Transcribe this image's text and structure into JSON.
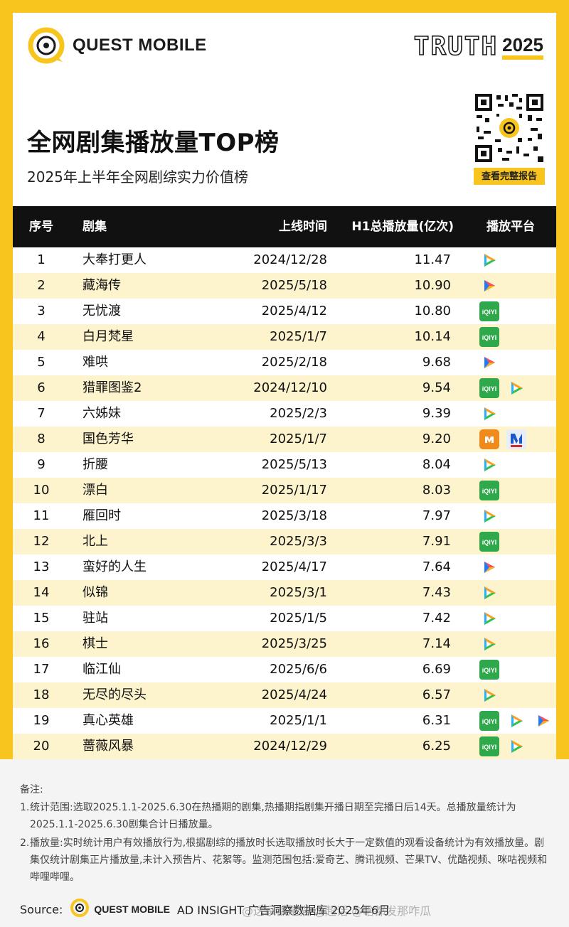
{
  "brand": {
    "name": "QUEST MOBILE",
    "truth_word": "TRUTH",
    "truth_year": "2025"
  },
  "title": "全网剧集播放量TOP榜",
  "subtitle": "2025年上半年全网剧综实力价值榜",
  "qr_button": "查看完整报告",
  "table": {
    "headers": {
      "no": "序号",
      "name": "剧集",
      "date": "上线时间",
      "value": "H1总播放量(亿次)",
      "platform": "播放平台"
    },
    "rows": [
      {
        "no": "1",
        "name": "大奉打更人",
        "date": "2024/12/28",
        "value": "11.47",
        "platforms": [
          "tencent"
        ]
      },
      {
        "no": "2",
        "name": "藏海传",
        "date": "2025/5/18",
        "value": "10.90",
        "platforms": [
          "youku"
        ]
      },
      {
        "no": "3",
        "name": "无忧渡",
        "date": "2025/4/12",
        "value": "10.80",
        "platforms": [
          "iqiyi"
        ]
      },
      {
        "no": "4",
        "name": "白月梵星",
        "date": "2025/1/7",
        "value": "10.14",
        "platforms": [
          "iqiyi"
        ]
      },
      {
        "no": "5",
        "name": "难哄",
        "date": "2025/2/18",
        "value": "9.68",
        "platforms": [
          "youku"
        ]
      },
      {
        "no": "6",
        "name": "猎罪图鉴2",
        "date": "2024/12/10",
        "value": "9.54",
        "platforms": [
          "iqiyi",
          "tencent"
        ]
      },
      {
        "no": "7",
        "name": "六姊妹",
        "date": "2025/2/3",
        "value": "9.39",
        "platforms": [
          "tencent"
        ]
      },
      {
        "no": "8",
        "name": "国色芳华",
        "date": "2025/1/7",
        "value": "9.20",
        "platforms": [
          "mango",
          "cctv"
        ]
      },
      {
        "no": "9",
        "name": "折腰",
        "date": "2025/5/13",
        "value": "8.04",
        "platforms": [
          "tencent"
        ]
      },
      {
        "no": "10",
        "name": "漂白",
        "date": "2025/1/17",
        "value": "8.03",
        "platforms": [
          "iqiyi"
        ]
      },
      {
        "no": "11",
        "name": "雁回时",
        "date": "2025/3/18",
        "value": "7.97",
        "platforms": [
          "tencent"
        ]
      },
      {
        "no": "12",
        "name": "北上",
        "date": "2025/3/3",
        "value": "7.91",
        "platforms": [
          "iqiyi"
        ]
      },
      {
        "no": "13",
        "name": "蛮好的人生",
        "date": "2025/4/17",
        "value": "7.64",
        "platforms": [
          "youku"
        ]
      },
      {
        "no": "14",
        "name": "似锦",
        "date": "2025/3/1",
        "value": "7.43",
        "platforms": [
          "tencent"
        ]
      },
      {
        "no": "15",
        "name": "驻站",
        "date": "2025/1/5",
        "value": "7.42",
        "platforms": [
          "tencent"
        ]
      },
      {
        "no": "16",
        "name": "棋士",
        "date": "2025/3/25",
        "value": "7.14",
        "platforms": [
          "tencent"
        ]
      },
      {
        "no": "17",
        "name": "临江仙",
        "date": "2025/6/6",
        "value": "6.69",
        "platforms": [
          "iqiyi"
        ]
      },
      {
        "no": "18",
        "name": "无尽的尽头",
        "date": "2025/4/24",
        "value": "6.57",
        "platforms": [
          "tencent"
        ]
      },
      {
        "no": "19",
        "name": "真心英雄",
        "date": "2025/1/1",
        "value": "6.31",
        "platforms": [
          "iqiyi",
          "tencent",
          "youku"
        ]
      },
      {
        "no": "20",
        "name": "蔷薇风暴",
        "date": "2024/12/29",
        "value": "6.25",
        "platforms": [
          "iqiyi",
          "tencent"
        ]
      }
    ]
  },
  "notes": {
    "title": "备注:",
    "items": [
      {
        "num": "1.",
        "text": "统计范围:选取2025.1.1-2025.6.30在热播期的剧集,热播期指剧集开播日期至完播日后14天。总播放量统计为2025.1.1-2025.6.30剧集合计日播放量。"
      },
      {
        "num": "2.",
        "text": "播放量:实时统计用户有效播放行为,根据剧综的播放时长选取播放时长大于一定数值的观看设备统计为有效播放量。剧集仅统计剧集正片播放量,未计入预告片、花絮等。监测范围包括:爱奇艺、腾讯视频、芒果TV、优酷视频、咪咕视频和哔哩哔哩。"
      }
    ],
    "source_label": "Source:",
    "source_brand": "QUEST MOBILE",
    "source_tail": "AD INSIGHT 广告洞察数据库 2025年6月",
    "watermark": "@这家都是猫  @超话  @啥都发那咋瓜"
  },
  "colors": {
    "accent": "#f8c51f",
    "header_bg": "#111111",
    "row_alt": "#fdf3cc",
    "iqiyi": "#2ea84a",
    "tencent_blue": "#1e9bf0",
    "youku_orange": "#ff6a13",
    "mango": "#f08a1c"
  },
  "icons": {
    "tencent": "tencent-video-icon",
    "iqiyi": "iqiyi-icon",
    "youku": "youku-icon",
    "mango": "mango-tv-icon",
    "cctv": "cctv-icon"
  }
}
